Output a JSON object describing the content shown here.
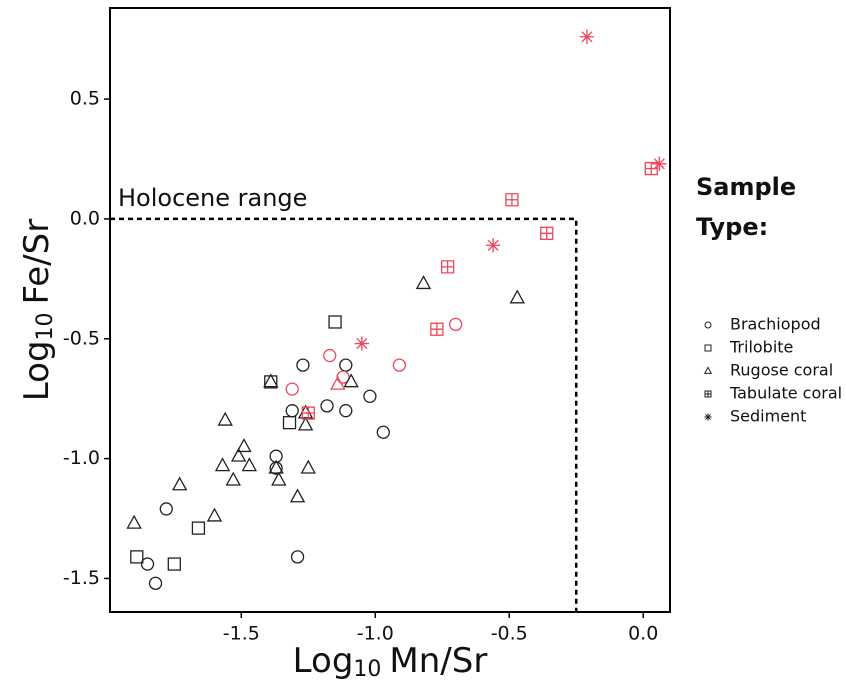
{
  "chart_data": {
    "type": "scatter",
    "xlabel": {
      "base": "Log",
      "subscript": "10",
      "text": "Mn/Sr"
    },
    "ylabel": {
      "base": "Log",
      "subscript": "10",
      "text": "Fe/Sr"
    },
    "xlim": [
      -1.99,
      0.1
    ],
    "ylim": [
      -1.64,
      0.88
    ],
    "xticks": [
      -1.5,
      {
        "value": -1,
        "label": "-1.0"
      },
      -0.5,
      {
        "value": 0,
        "label": "0.0"
      }
    ],
    "yticks": [
      0.5,
      {
        "value": 0,
        "label": "0.0"
      },
      -0.5,
      {
        "value": -1,
        "label": "-1.0"
      },
      -1.5
    ],
    "annotation": {
      "text": "Holocene range",
      "x": -0.25,
      "y": 0
    },
    "legend_title": "Sample Type:",
    "series": [
      {
        "name": "Brachiopod",
        "marker": "circle",
        "x": [
          -1.85,
          -1.82,
          -1.78,
          -1.31,
          -1.37,
          -1.37,
          -1.27,
          -1.29,
          -1.18,
          -1.11,
          -1.11,
          -1.02,
          -0.97,
          -1.31,
          -1.17,
          -1.12,
          -0.91,
          -0.7
        ],
        "values": [
          -1.44,
          -1.52,
          -1.21,
          -0.8,
          -0.99,
          -1.04,
          -0.61,
          -1.41,
          -0.78,
          -0.61,
          -0.8,
          -0.74,
          -0.89,
          -0.71,
          -0.57,
          -0.66,
          -0.61,
          -0.44
        ],
        "colors": [
          "#222",
          "#222",
          "#222",
          "#222",
          "#222",
          "#222",
          "#222",
          "#222",
          "#222",
          "#222",
          "#222",
          "#222",
          "#222",
          "#f0475a",
          "#f0475a",
          "#f0475a",
          "#f0475a",
          "#f0475a"
        ]
      },
      {
        "name": "Trilobite",
        "marker": "square",
        "x": [
          -1.89,
          -1.75,
          -1.66,
          -1.39,
          -1.32,
          -1.15
        ],
        "values": [
          -1.41,
          -1.44,
          -1.29,
          -0.68,
          -0.85,
          -0.43
        ],
        "colors": [
          "#222",
          "#222",
          "#222",
          "#222",
          "#222",
          "#222"
        ]
      },
      {
        "name": "Rugose coral",
        "marker": "triangle",
        "x": [
          -1.9,
          -1.73,
          -1.6,
          -1.56,
          -1.57,
          -1.53,
          -1.51,
          -1.49,
          -1.47,
          -1.39,
          -1.37,
          -1.36,
          -1.29,
          -1.26,
          -1.26,
          -1.25,
          -1.09,
          -0.82,
          -0.47,
          -1.14
        ],
        "values": [
          -1.27,
          -1.11,
          -1.24,
          -0.84,
          -1.03,
          -1.09,
          -0.99,
          -0.95,
          -1.03,
          -0.68,
          -1.04,
          -1.09,
          -1.16,
          -0.81,
          -0.86,
          -1.04,
          -0.68,
          -0.27,
          -0.33,
          -0.69
        ],
        "colors": [
          "#222",
          "#222",
          "#222",
          "#222",
          "#222",
          "#222",
          "#222",
          "#222",
          "#222",
          "#222",
          "#222",
          "#222",
          "#222",
          "#222",
          "#222",
          "#222",
          "#222",
          "#222",
          "#222",
          "#f0475a"
        ]
      },
      {
        "name": "Tabulate coral",
        "marker": "square-plus",
        "x": [
          -1.25,
          -0.77,
          -0.73,
          -0.49,
          -0.36,
          0.03
        ],
        "values": [
          -0.81,
          -0.46,
          -0.2,
          0.08,
          -0.06,
          0.21
        ],
        "colors": [
          "#f0475a",
          "#f0475a",
          "#f0475a",
          "#f0475a",
          "#f0475a",
          "#f0475a"
        ]
      },
      {
        "name": "Sediment",
        "marker": "asterisk",
        "x": [
          -1.05,
          -0.56,
          -0.21,
          0.06
        ],
        "values": [
          -0.52,
          -0.11,
          0.76,
          0.23
        ],
        "colors": [
          "#f0475a",
          "#f0475a",
          "#f0475a",
          "#f0475a"
        ]
      }
    ]
  }
}
